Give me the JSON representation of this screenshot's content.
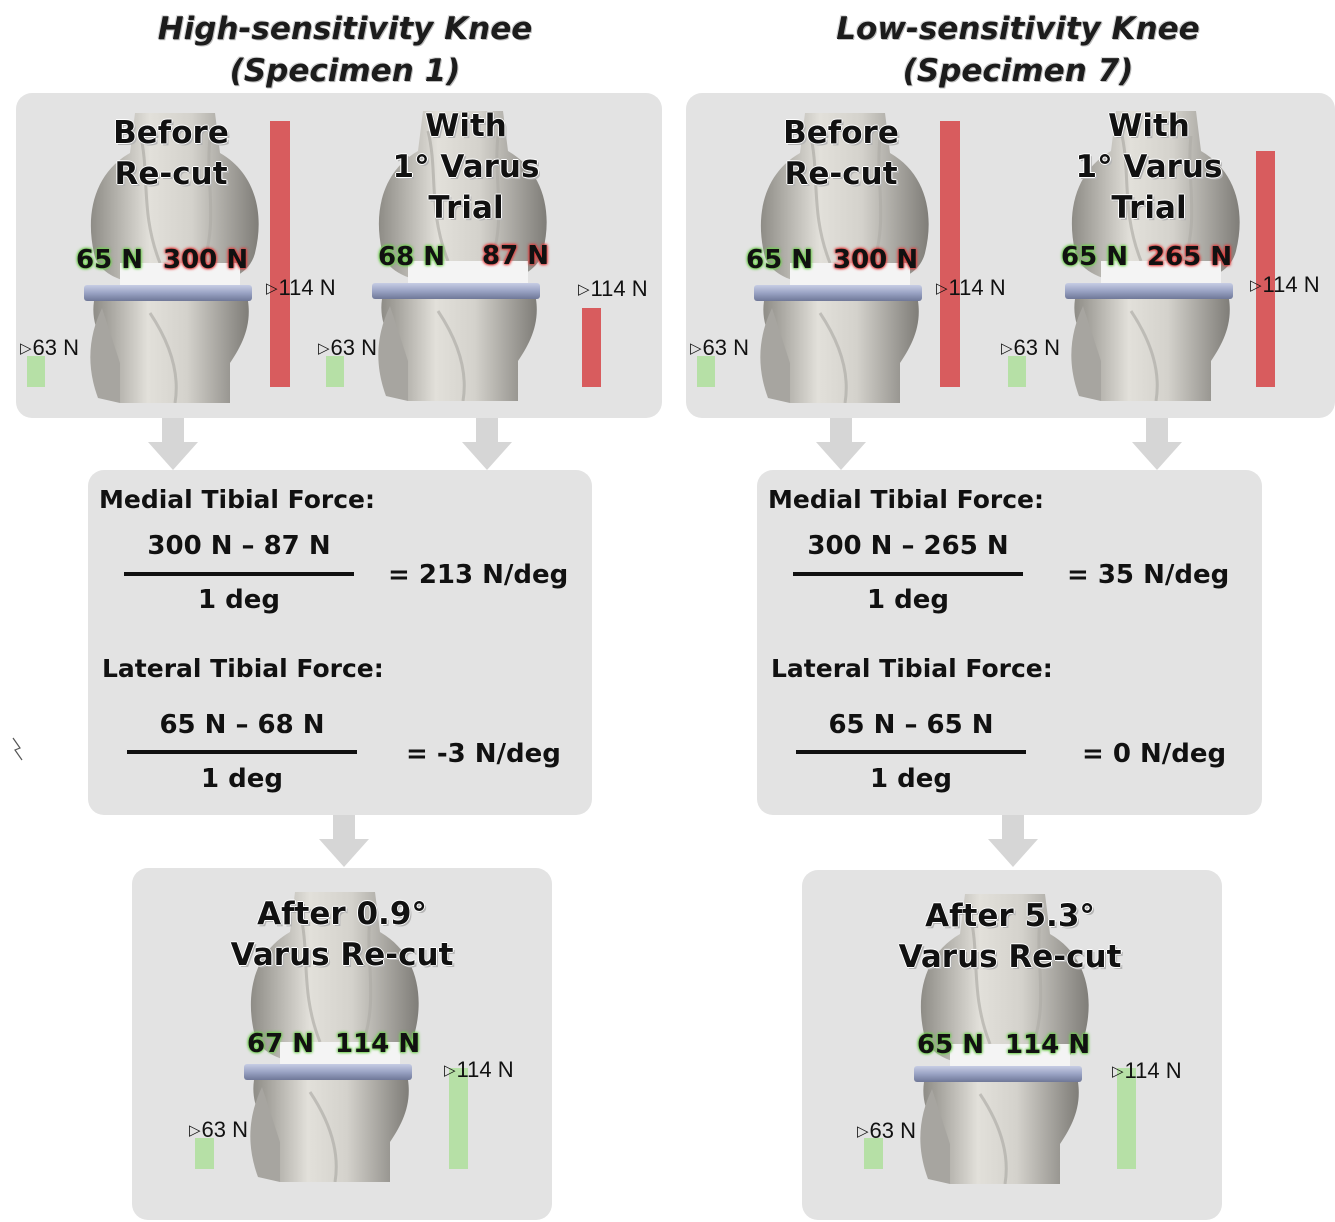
{
  "left": {
    "title_line1": "High-sensitivity Knee",
    "title_line2": "(Specimen 1)",
    "before_label": [
      "Before",
      "Re-cut"
    ],
    "trial_label": [
      "With",
      "1° Varus",
      "Trial"
    ],
    "before_lateral": "65 N",
    "before_medial": "300 N",
    "trial_lateral": "68 N",
    "trial_medial": "87 N",
    "ref_lateral": "63 N",
    "ref_medial": "114 N",
    "medial_heading": "Medial Tibial Force:",
    "medial_numerator": "300 N – 87 N",
    "medial_denominator": "1 deg",
    "medial_result": "= 213 N/deg",
    "lateral_heading": "Lateral Tibial Force:",
    "lateral_numerator": "65 N – 68 N",
    "lateral_denominator": "1 deg",
    "lateral_result": "= -3 N/deg",
    "after_label": [
      "After 0.9°",
      "Varus Re-cut"
    ],
    "after_lateral": "67 N",
    "after_medial": "114 N"
  },
  "right": {
    "title_line1": "Low-sensitivity Knee",
    "title_line2": "(Specimen 7)",
    "before_label": [
      "Before",
      "Re-cut"
    ],
    "trial_label": [
      "With",
      "1° Varus",
      "Trial"
    ],
    "before_lateral": "65 N",
    "before_medial": "300 N",
    "trial_lateral": "65 N",
    "trial_medial": "265 N",
    "ref_lateral": "63 N",
    "ref_medial": "114 N",
    "medial_heading": "Medial Tibial Force:",
    "medial_numerator": "300 N – 265 N",
    "medial_denominator": "1 deg",
    "medial_result": "= 35 N/deg",
    "lateral_heading": "Lateral Tibial Force:",
    "lateral_numerator": "65 N – 65 N",
    "lateral_denominator": "1 deg",
    "lateral_result": "= 0 N/deg",
    "after_label": [
      "After 5.3°",
      "Varus Re-cut"
    ],
    "after_lateral": "65 N",
    "after_medial": "114 N"
  },
  "colors": {
    "panel": "#e3e3e3",
    "arrow": "#d6d6d6",
    "bar_green": "#b6e0a6",
    "bar_red": "#d85c5e",
    "bone": "#dcdad4",
    "tray": "#9aa3c4"
  },
  "bar_values_n": {
    "left_before": {
      "lateral": 65,
      "medial": 300
    },
    "left_trial": {
      "lateral": 68,
      "medial": 87
    },
    "left_after": {
      "lateral": 67,
      "medial": 114
    },
    "right_before": {
      "lateral": 65,
      "medial": 300
    },
    "right_trial": {
      "lateral": 65,
      "medial": 265
    },
    "right_after": {
      "lateral": 65,
      "medial": 114
    }
  }
}
